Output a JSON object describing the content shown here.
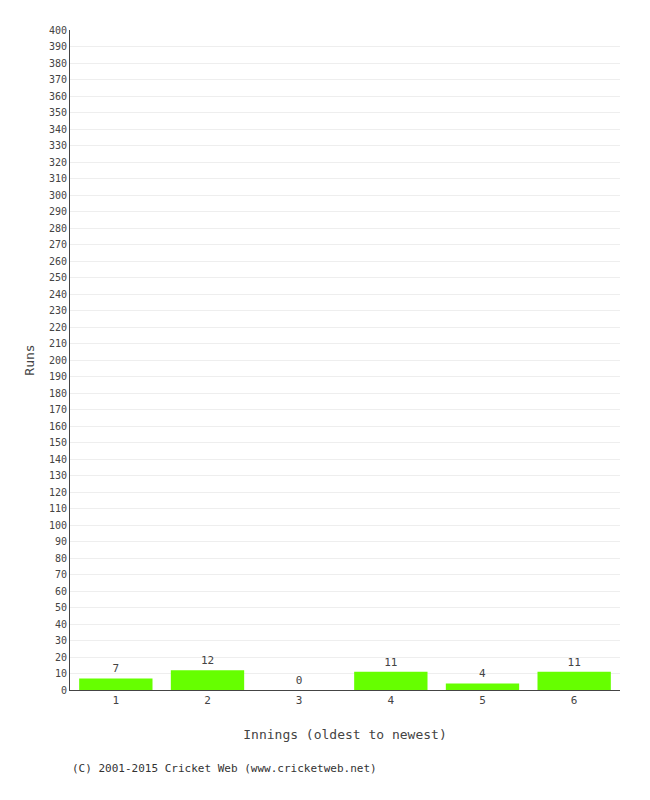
{
  "chart_data": {
    "type": "bar",
    "categories": [
      "1",
      "2",
      "3",
      "4",
      "5",
      "6"
    ],
    "values": [
      7,
      12,
      0,
      11,
      4,
      11
    ],
    "color": "#66ff00",
    "xlabel": "Innings (oldest to newest)",
    "ylabel": "Runs",
    "ylim": [
      0,
      400
    ],
    "yticks": [
      0,
      10,
      20,
      30,
      40,
      50,
      60,
      70,
      80,
      90,
      100,
      110,
      120,
      130,
      140,
      150,
      160,
      170,
      180,
      190,
      200,
      210,
      220,
      230,
      240,
      250,
      260,
      270,
      280,
      290,
      300,
      310,
      320,
      330,
      340,
      350,
      360,
      370,
      380,
      390,
      400
    ],
    "grid": true,
    "data_labels": true,
    "annotations": [
      "(C) 2001-2015 Cricket Web (www.cricketweb.net)"
    ]
  }
}
